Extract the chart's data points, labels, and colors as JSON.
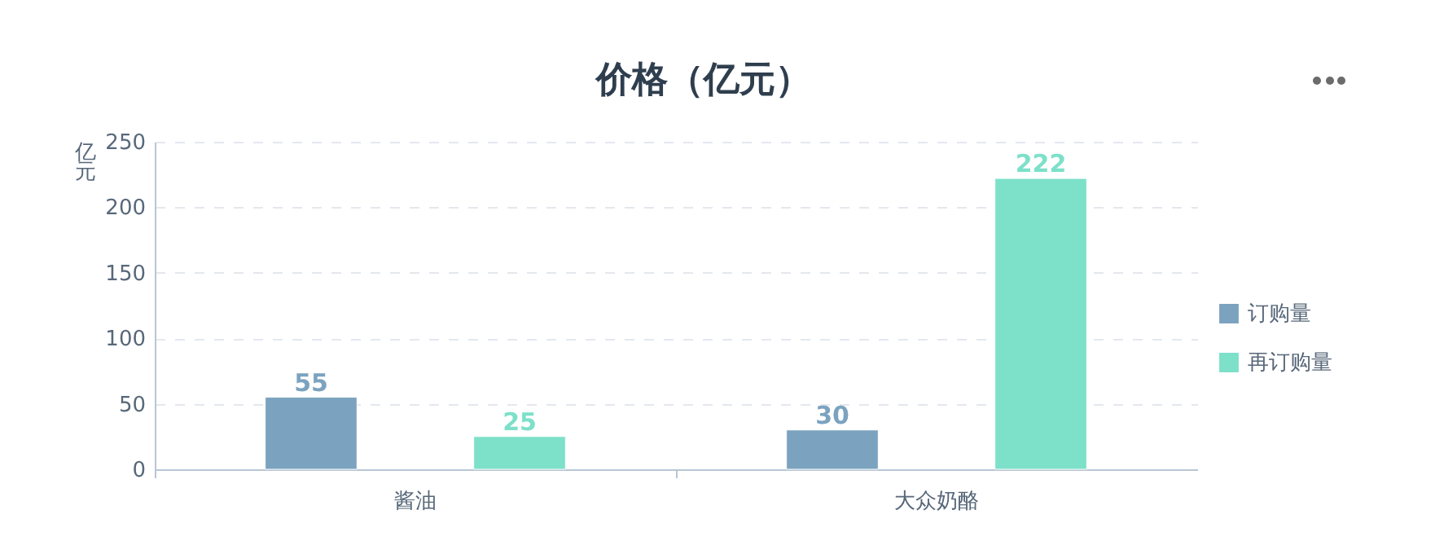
{
  "chart_data": {
    "type": "bar",
    "title": "价格（亿元）",
    "ylabel": "亿元",
    "categories": [
      "酱油",
      "大众奶酪"
    ],
    "series": [
      {
        "name": "订购量",
        "color": "#7ba3bf",
        "values": [
          55,
          30
        ]
      },
      {
        "name": "再订购量",
        "color": "#7de0c9",
        "values": [
          25,
          222
        ]
      }
    ],
    "ylim": [
      0,
      250
    ],
    "yticks": [
      0,
      50,
      100,
      150,
      200,
      250
    ],
    "grid": "y",
    "legend": "right",
    "data_labels": true
  }
}
